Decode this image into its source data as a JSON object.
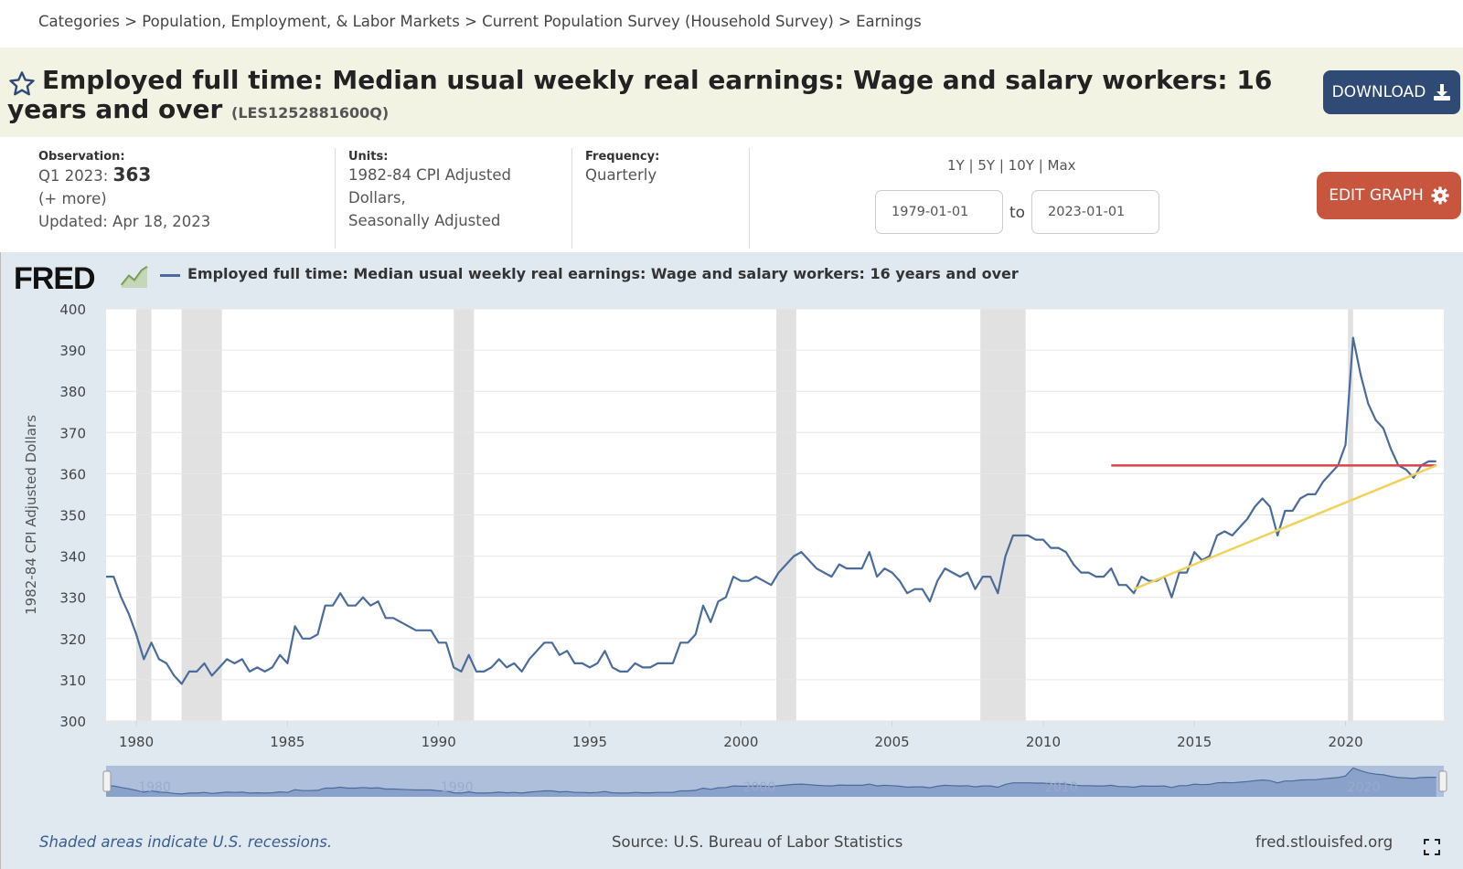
{
  "breadcrumb": {
    "items": [
      "Categories",
      "Population, Employment, & Labor Markets",
      "Current Population Survey (Household Survey)",
      "Earnings"
    ],
    "separator": ">"
  },
  "header": {
    "title": "Employed full time: Median usual weekly real earnings: Wage and salary workers: 16 years and over",
    "series_id": "(LES1252881600Q)",
    "download_label": "DOWNLOAD"
  },
  "meta": {
    "observation_label": "Observation:",
    "observation_period": "Q1 2023:",
    "observation_value": "363",
    "more": "(+ more)",
    "updated": "Updated: Apr 18, 2023",
    "units_label": "Units:",
    "units_lines": [
      "1982-84 CPI Adjusted",
      "Dollars,",
      "Seasonally Adjusted"
    ],
    "frequency_label": "Frequency:",
    "frequency_value": "Quarterly"
  },
  "controls": {
    "ranges": [
      "1Y",
      "5Y",
      "10Y",
      "Max"
    ],
    "start_date": "1979-01-01",
    "to_label": "to",
    "end_date": "2023-01-01",
    "edit_label": "EDIT GRAPH"
  },
  "footer": {
    "note": "Shaded areas indicate U.S. recessions.",
    "source": "Source: U.S. Bureau of Labor Statistics",
    "site": "fred.stlouisfed.org"
  },
  "colors": {
    "series": "#4a6c9b",
    "recession": "#e1e1e1",
    "red_line": "#d9434a",
    "yellow_line": "#f1d25a",
    "download_bg": "#2f4a75",
    "edit_bg": "#c8553d"
  },
  "chart_data": {
    "type": "line",
    "logo": "FRED",
    "legend": [
      "Employed full time: Median usual weekly real earnings: Wage and salary workers: 16 years and over"
    ],
    "ylabel": "1982-84 CPI Adjusted Dollars",
    "ylim": [
      300,
      400
    ],
    "xlim": [
      1979.0,
      2023.25
    ],
    "yticks": [
      300,
      310,
      320,
      330,
      340,
      350,
      360,
      370,
      380,
      390,
      400
    ],
    "xticks": [
      1980,
      1985,
      1990,
      1995,
      2000,
      2005,
      2010,
      2015,
      2020
    ],
    "navigator_labels": [
      "1980",
      "1990",
      "2000",
      "2010",
      "2020"
    ],
    "grid": true,
    "recessions": [
      [
        1980.0,
        1980.5
      ],
      [
        1981.5,
        1982.83
      ],
      [
        1990.5,
        1991.17
      ],
      [
        2001.17,
        2001.83
      ],
      [
        2007.92,
        2009.42
      ],
      [
        2020.08,
        2020.25
      ]
    ],
    "series": [
      {
        "name": "Employed full time: Median usual weekly real earnings: Wage and salary workers: 16 years and over",
        "start": 1979.0,
        "step": 0.25,
        "values": [
          335,
          335,
          330,
          326,
          321,
          315,
          319,
          315,
          314,
          311,
          309,
          312,
          312,
          314,
          311,
          313,
          315,
          314,
          315,
          312,
          313,
          312,
          313,
          316,
          314,
          323,
          320,
          320,
          321,
          328,
          328,
          331,
          328,
          328,
          330,
          328,
          329,
          325,
          325,
          324,
          323,
          322,
          322,
          322,
          319,
          319,
          313,
          312,
          316,
          312,
          312,
          313,
          315,
          313,
          314,
          312,
          315,
          317,
          319,
          319,
          316,
          317,
          314,
          314,
          313,
          314,
          317,
          313,
          312,
          312,
          314,
          313,
          313,
          314,
          314,
          314,
          319,
          319,
          321,
          328,
          324,
          329,
          330,
          335,
          334,
          334,
          335,
          334,
          333,
          336,
          338,
          340,
          341,
          339,
          337,
          336,
          335,
          338,
          337,
          337,
          337,
          341,
          335,
          337,
          336,
          334,
          331,
          332,
          332,
          329,
          334,
          337,
          336,
          335,
          336,
          332,
          335,
          335,
          331,
          340,
          345,
          345,
          345,
          344,
          344,
          342,
          342,
          341,
          338,
          336,
          336,
          335,
          335,
          337,
          333,
          333,
          331,
          335,
          334,
          334,
          335,
          330,
          336,
          336,
          341,
          339,
          340,
          345,
          346,
          345,
          347,
          349,
          352,
          354,
          352,
          345,
          351,
          351,
          354,
          355,
          355,
          358,
          360,
          362,
          367,
          393,
          384,
          377,
          373,
          371,
          366,
          362,
          361,
          359,
          362,
          363,
          363
        ]
      }
    ],
    "annotations": [
      {
        "type": "horizontal-line",
        "color": "red",
        "x": [
          2012.25,
          2023.0
        ],
        "y": [
          362,
          362
        ]
      },
      {
        "type": "trend-line",
        "color": "yellow",
        "x": [
          2013.0,
          2023.0
        ],
        "y": [
          332,
          362
        ]
      }
    ]
  }
}
